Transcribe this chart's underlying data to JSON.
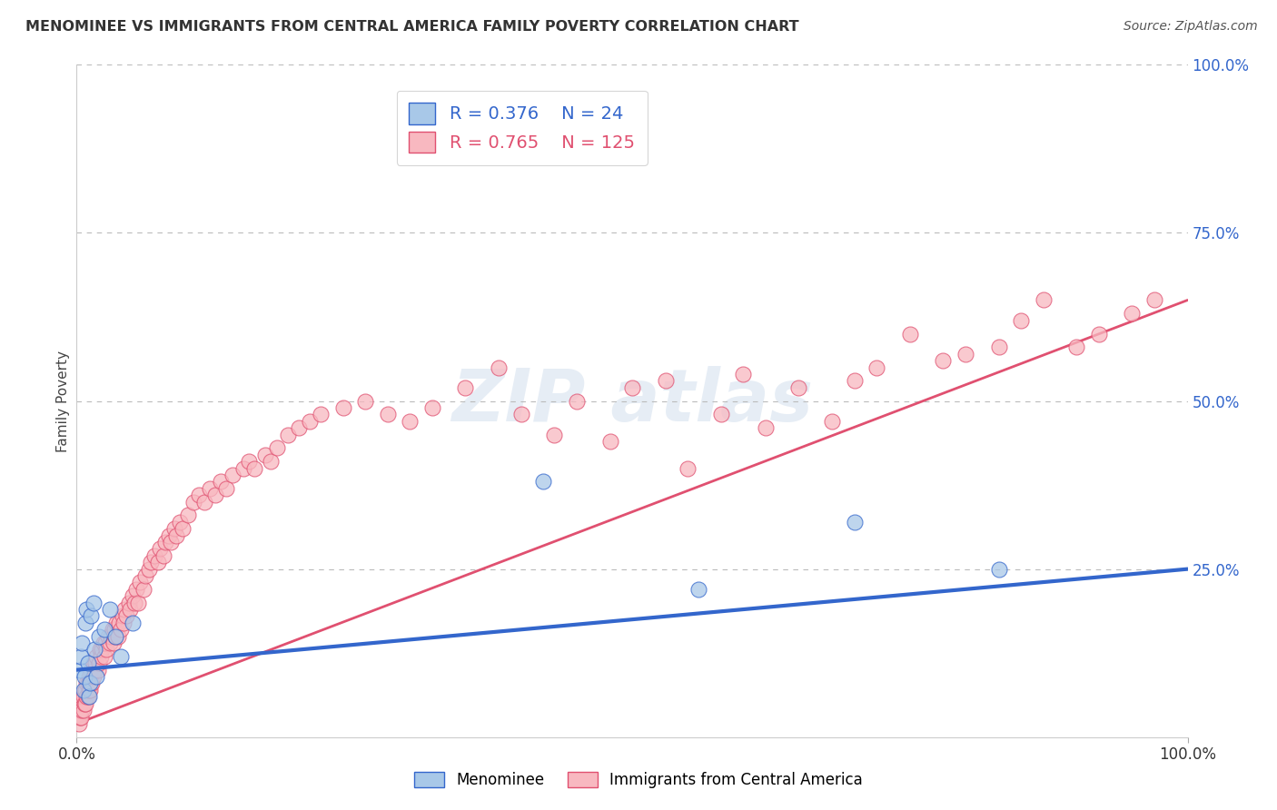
{
  "title": "MENOMINEE VS IMMIGRANTS FROM CENTRAL AMERICA FAMILY POVERTY CORRELATION CHART",
  "source": "Source: ZipAtlas.com",
  "ylabel": "Family Poverty",
  "legend_label_1": "Menominee",
  "legend_label_2": "Immigrants from Central America",
  "R1": 0.376,
  "N1": 24,
  "R2": 0.765,
  "N2": 125,
  "color1": "#A8C8E8",
  "color2": "#F8B8C0",
  "line_color1": "#3366CC",
  "line_color2": "#E05070",
  "background": "#ffffff",
  "menominee_x": [
    0.003,
    0.004,
    0.005,
    0.006,
    0.007,
    0.008,
    0.009,
    0.01,
    0.011,
    0.012,
    0.013,
    0.015,
    0.016,
    0.018,
    0.02,
    0.025,
    0.03,
    0.035,
    0.04,
    0.05,
    0.42,
    0.56,
    0.7,
    0.83
  ],
  "menominee_y": [
    0.1,
    0.12,
    0.14,
    0.07,
    0.09,
    0.17,
    0.19,
    0.11,
    0.06,
    0.08,
    0.18,
    0.2,
    0.13,
    0.09,
    0.15,
    0.16,
    0.19,
    0.15,
    0.12,
    0.17,
    0.38,
    0.22,
    0.32,
    0.25
  ],
  "ca_x": [
    0.002,
    0.003,
    0.003,
    0.004,
    0.004,
    0.005,
    0.005,
    0.006,
    0.006,
    0.007,
    0.007,
    0.008,
    0.008,
    0.009,
    0.009,
    0.01,
    0.01,
    0.011,
    0.011,
    0.012,
    0.012,
    0.013,
    0.013,
    0.014,
    0.015,
    0.015,
    0.016,
    0.017,
    0.018,
    0.019,
    0.02,
    0.021,
    0.022,
    0.023,
    0.024,
    0.025,
    0.026,
    0.027,
    0.028,
    0.03,
    0.031,
    0.032,
    0.033,
    0.034,
    0.035,
    0.036,
    0.037,
    0.038,
    0.04,
    0.041,
    0.042,
    0.043,
    0.045,
    0.047,
    0.048,
    0.05,
    0.052,
    0.054,
    0.055,
    0.057,
    0.06,
    0.062,
    0.065,
    0.067,
    0.07,
    0.073,
    0.075,
    0.078,
    0.08,
    0.083,
    0.085,
    0.088,
    0.09,
    0.093,
    0.095,
    0.1,
    0.105,
    0.11,
    0.115,
    0.12,
    0.125,
    0.13,
    0.135,
    0.14,
    0.15,
    0.155,
    0.16,
    0.17,
    0.175,
    0.18,
    0.19,
    0.2,
    0.21,
    0.22,
    0.24,
    0.26,
    0.28,
    0.3,
    0.32,
    0.35,
    0.38,
    0.4,
    0.43,
    0.45,
    0.48,
    0.5,
    0.53,
    0.55,
    0.58,
    0.6,
    0.62,
    0.65,
    0.68,
    0.7,
    0.72,
    0.75,
    0.78,
    0.8,
    0.83,
    0.85,
    0.87,
    0.9,
    0.92,
    0.95,
    0.97
  ],
  "ca_y": [
    0.02,
    0.03,
    0.04,
    0.03,
    0.05,
    0.04,
    0.06,
    0.04,
    0.06,
    0.05,
    0.07,
    0.05,
    0.07,
    0.06,
    0.08,
    0.06,
    0.08,
    0.07,
    0.09,
    0.07,
    0.09,
    0.08,
    0.1,
    0.08,
    0.09,
    0.11,
    0.1,
    0.11,
    0.12,
    0.1,
    0.11,
    0.13,
    0.12,
    0.13,
    0.14,
    0.12,
    0.14,
    0.13,
    0.15,
    0.14,
    0.15,
    0.16,
    0.14,
    0.16,
    0.15,
    0.17,
    0.15,
    0.17,
    0.16,
    0.18,
    0.17,
    0.19,
    0.18,
    0.2,
    0.19,
    0.21,
    0.2,
    0.22,
    0.2,
    0.23,
    0.22,
    0.24,
    0.25,
    0.26,
    0.27,
    0.26,
    0.28,
    0.27,
    0.29,
    0.3,
    0.29,
    0.31,
    0.3,
    0.32,
    0.31,
    0.33,
    0.35,
    0.36,
    0.35,
    0.37,
    0.36,
    0.38,
    0.37,
    0.39,
    0.4,
    0.41,
    0.4,
    0.42,
    0.41,
    0.43,
    0.45,
    0.46,
    0.47,
    0.48,
    0.49,
    0.5,
    0.48,
    0.47,
    0.49,
    0.52,
    0.55,
    0.48,
    0.45,
    0.5,
    0.44,
    0.52,
    0.53,
    0.4,
    0.48,
    0.54,
    0.46,
    0.52,
    0.47,
    0.53,
    0.55,
    0.6,
    0.56,
    0.57,
    0.58,
    0.62,
    0.65,
    0.58,
    0.6,
    0.63,
    0.65
  ],
  "blue_line_x0": 0.0,
  "blue_line_y0": 0.1,
  "blue_line_x1": 1.0,
  "blue_line_y1": 0.25,
  "pink_line_x0": 0.0,
  "pink_line_y0": 0.02,
  "pink_line_x1": 1.0,
  "pink_line_y1": 0.65,
  "xmin": 0.0,
  "xmax": 1.0,
  "ymin": 0.0,
  "ymax": 1.0,
  "ytick_labels": [
    "100.0%",
    "75.0%",
    "50.0%",
    "25.0%"
  ],
  "ytick_values": [
    1.0,
    0.75,
    0.5,
    0.25
  ],
  "xtick_labels": [
    "0.0%",
    "100.0%"
  ],
  "xtick_values": [
    0.0,
    1.0
  ],
  "grid_color": "#bbbbbb",
  "title_color": "#333333",
  "source_color": "#555555"
}
